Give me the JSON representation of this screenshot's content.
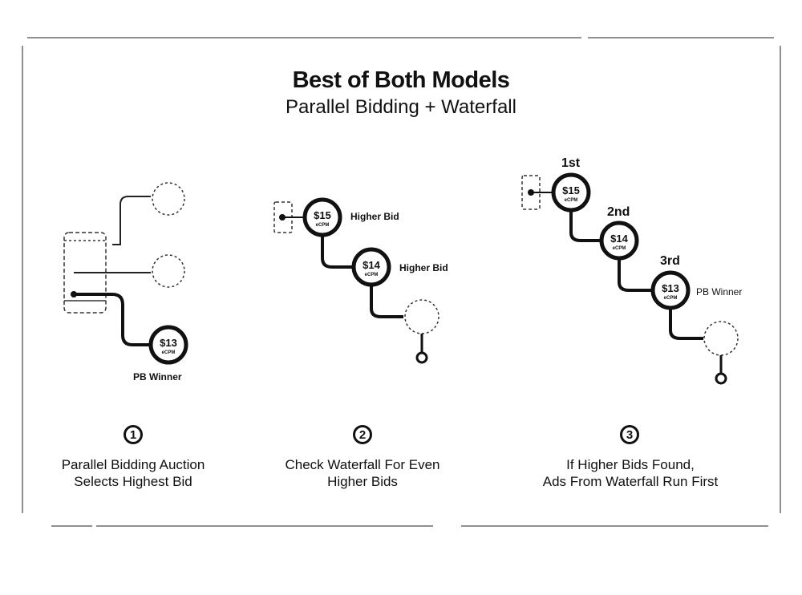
{
  "header": {
    "title": "Best of Both Models",
    "subtitle": "Parallel Bidding + Waterfall"
  },
  "unit": "eCPM",
  "panel1": {
    "winner_price": "$13",
    "winner_label": "PB Winner",
    "step": "1",
    "caption_line1": "Parallel Bidding Auction",
    "caption_line2": "Selects Highest Bid"
  },
  "panel2": {
    "bid1_price": "$15",
    "bid1_label": "Higher Bid",
    "bid2_price": "$14",
    "bid2_label": "Higher Bid",
    "step": "2",
    "caption_line1": "Check Waterfall For Even",
    "caption_line2": "Higher Bids"
  },
  "panel3": {
    "rank1": "1st",
    "rank2": "2nd",
    "rank3": "3rd",
    "bid1_price": "$15",
    "bid2_price": "$14",
    "bid3_price": "$13",
    "bid3_label": "PB Winner",
    "step": "3",
    "caption_line1": "If Higher Bids Found,",
    "caption_line2": "Ads From Waterfall Run First"
  }
}
